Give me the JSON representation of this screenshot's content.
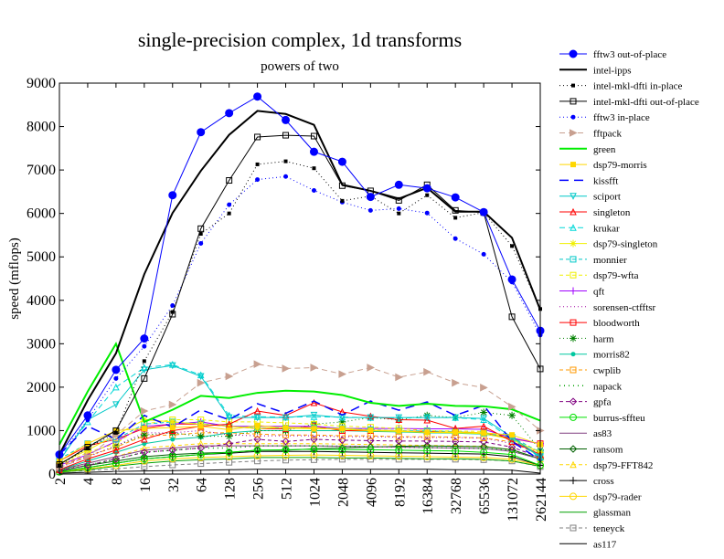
{
  "chart_data": {
    "type": "line",
    "title": "single-precision complex, 1d transforms",
    "subtitle": "powers of two",
    "ylabel": "speed (mflops)",
    "xlabel": "",
    "ylim": [
      0,
      9000
    ],
    "yticks": [
      0,
      1000,
      2000,
      3000,
      4000,
      5000,
      6000,
      7000,
      8000,
      9000
    ],
    "categories": [
      "2",
      "4",
      "8",
      "16",
      "32",
      "64",
      "128",
      "256",
      "512",
      "1024",
      "2048",
      "4096",
      "8192",
      "16384",
      "32768",
      "65536",
      "131072",
      "262144"
    ],
    "legend_position": "right",
    "series": [
      {
        "name": "fftw3 out-of-place",
        "color": "#0000ff",
        "dash": "",
        "width": 1,
        "marker": "dot",
        "msize": 4,
        "values": [
          450,
          1350,
          2400,
          3120,
          6420,
          7870,
          8310,
          8690,
          8150,
          7420,
          7190,
          6380,
          6660,
          6580,
          6370,
          6030,
          4480,
          3300
        ]
      },
      {
        "name": "intel-ipps",
        "color": "#000000",
        "dash": "",
        "width": 2,
        "marker": "none",
        "msize": 0,
        "values": [
          450,
          1700,
          2780,
          4600,
          6010,
          6980,
          7810,
          8360,
          8290,
          8040,
          6660,
          6520,
          6340,
          6590,
          6040,
          6040,
          5440,
          3780
        ]
      },
      {
        "name": "intel-mkl-dfti in-place",
        "color": "#000000",
        "dash": "1,3",
        "width": 1,
        "marker": "square-filled",
        "msize": 2,
        "values": [
          200,
          600,
          950,
          2600,
          3730,
          5530,
          6000,
          7130,
          7200,
          7040,
          6290,
          6400,
          6000,
          6420,
          5900,
          6020,
          5250,
          3800
        ]
      },
      {
        "name": "intel-mkl-dfti out-of-place",
        "color": "#000000",
        "dash": "",
        "width": 1,
        "marker": "square-open",
        "msize": 3,
        "values": [
          220,
          620,
          1000,
          2200,
          3680,
          5650,
          6760,
          7760,
          7800,
          7780,
          6640,
          6520,
          6300,
          6660,
          6070,
          6020,
          3620,
          2420
        ]
      },
      {
        "name": "fftw3 in-place",
        "color": "#0000ff",
        "dash": "1,3",
        "width": 1,
        "marker": "dot",
        "msize": 2,
        "values": [
          400,
          1250,
          2200,
          2940,
          3880,
          5310,
          6200,
          6780,
          6850,
          6530,
          6260,
          6070,
          6110,
          6010,
          5420,
          5060,
          4420,
          3200
        ]
      },
      {
        "name": "fftpack",
        "color": "#c8a090",
        "dash": "6,4",
        "width": 1,
        "marker": "triangle-right",
        "msize": 3.5,
        "values": [
          150,
          400,
          900,
          1450,
          1600,
          2100,
          2250,
          2530,
          2430,
          2450,
          2300,
          2450,
          2230,
          2350,
          2100,
          1990,
          1550,
          1000
        ]
      },
      {
        "name": "green",
        "color": "#00ee00",
        "dash": "",
        "width": 2,
        "marker": "none",
        "msize": 0,
        "values": [
          680,
          1900,
          3000,
          1200,
          1480,
          1800,
          1750,
          1870,
          1920,
          1900,
          1820,
          1640,
          1570,
          1620,
          1570,
          1560,
          1490,
          1230
        ]
      },
      {
        "name": "dsp79-morris",
        "color": "#ffd700",
        "dash": "",
        "width": 1,
        "marker": "square-filled",
        "msize": 3,
        "values": [
          300,
          700,
          1000,
          1050,
          1070,
          1100,
          1020,
          1120,
          1060,
          1040,
          1050,
          1010,
          1000,
          960,
          970,
          950,
          900,
          680
        ]
      },
      {
        "name": "kissfft",
        "color": "#0000ff",
        "dash": "10,6",
        "width": 1.5,
        "marker": "none",
        "msize": 0,
        "values": [
          450,
          1100,
          800,
          1350,
          1080,
          1480,
          1250,
          1620,
          1400,
          1680,
          1360,
          1680,
          1470,
          1660,
          1350,
          1580,
          750,
          320
        ]
      },
      {
        "name": "sciport",
        "color": "#00c8c8",
        "dash": "",
        "width": 1,
        "marker": "triangle-down",
        "msize": 3,
        "values": [
          300,
          1250,
          1600,
          2400,
          2500,
          2250,
          1300,
          1300,
          1300,
          1360,
          1300,
          1300,
          1300,
          1300,
          1300,
          1280,
          850,
          400
        ]
      },
      {
        "name": "singleton",
        "color": "#ff0000",
        "dash": "",
        "width": 1,
        "marker": "triangle-up",
        "msize": 3,
        "values": [
          100,
          350,
          550,
          800,
          1000,
          1100,
          1150,
          1450,
          1350,
          1640,
          1430,
          1330,
          1250,
          1240,
          1050,
          1100,
          750,
          450
        ]
      },
      {
        "name": "krukar",
        "color": "#00d8d8",
        "dash": "6,4",
        "width": 1,
        "marker": "triangle-up",
        "msize": 3,
        "values": [
          350,
          1200,
          2000,
          2450,
          2520,
          2280,
          1350,
          1320,
          1310,
          1320,
          1310,
          1300,
          1290,
          1300,
          1300,
          1250,
          800,
          380
        ]
      },
      {
        "name": "dsp79-singleton",
        "color": "#f0f000",
        "dash": "",
        "width": 1,
        "marker": "star",
        "msize": 4,
        "values": [
          250,
          550,
          900,
          1250,
          1200,
          1150,
          1100,
          1050,
          1080,
          1060,
          1030,
          1000,
          980,
          960,
          950,
          930,
          800,
          500
        ]
      },
      {
        "name": "monnier",
        "color": "#00c8c8",
        "dash": "4,3",
        "width": 1,
        "marker": "square-open",
        "msize": 3,
        "values": [
          350,
          700,
          800,
          1150,
          1200,
          1160,
          1100,
          1060,
          1060,
          1060,
          1050,
          1020,
          1000,
          990,
          980,
          940,
          850,
          500
        ]
      },
      {
        "name": "dsp79-wfta",
        "color": "#f0f000",
        "dash": "4,3",
        "width": 1,
        "marker": "square-open",
        "msize": 3,
        "values": [
          200,
          500,
          700,
          1150,
          1250,
          1250,
          1200,
          1200,
          1180,
          1150,
          1100,
          1080,
          1050,
          1000,
          990,
          980,
          800,
          450
        ]
      },
      {
        "name": "qft",
        "color": "#a000ff",
        "dash": "",
        "width": 1,
        "marker": "plus",
        "msize": 4,
        "values": [
          200,
          450,
          750,
          1100,
          1150,
          1200,
          1100,
          1100,
          1100,
          1100,
          1050,
          1050,
          1050,
          1040,
          1040,
          1030,
          830,
          700
        ]
      },
      {
        "name": "sorensen-ctfftsr",
        "color": "#a000a0",
        "dash": "1,3",
        "width": 1,
        "marker": "none",
        "msize": 0,
        "values": [
          150,
          400,
          650,
          950,
          950,
          1000,
          900,
          880,
          880,
          880,
          860,
          860,
          850,
          840,
          840,
          830,
          700,
          500
        ]
      },
      {
        "name": "bloodworth",
        "color": "#ff0000",
        "dash": "",
        "width": 1,
        "marker": "square-open",
        "msize": 3,
        "values": [
          300,
          650,
          800,
          1050,
          1150,
          1150,
          1100,
          1050,
          1040,
          1100,
          1000,
          1000,
          990,
          980,
          960,
          940,
          820,
          700
        ]
      },
      {
        "name": "harm",
        "color": "#008000",
        "dash": "1,3",
        "width": 1,
        "marker": "star",
        "msize": 4,
        "values": [
          150,
          400,
          650,
          900,
          950,
          870,
          870,
          1000,
          1000,
          1150,
          1200,
          1300,
          1250,
          1350,
          1300,
          1420,
          1350,
          550
        ]
      },
      {
        "name": "morris82",
        "color": "#00c8a0",
        "dash": "",
        "width": 1,
        "marker": "dot",
        "msize": 2,
        "values": [
          100,
          300,
          500,
          700,
          800,
          850,
          950,
          1000,
          1000,
          1000,
          1000,
          980,
          970,
          950,
          940,
          920,
          820,
          400
        ]
      },
      {
        "name": "cwplib",
        "color": "#ff9900",
        "dash": "4,3",
        "width": 1,
        "marker": "square-open",
        "msize": 3,
        "values": [
          180,
          420,
          620,
          880,
          900,
          950,
          950,
          920,
          900,
          900,
          880,
          880,
          860,
          860,
          850,
          830,
          740,
          420
        ]
      },
      {
        "name": "napack",
        "color": "#00a000",
        "dash": "1,4",
        "width": 1.5,
        "marker": "none",
        "msize": 0,
        "values": [
          100,
          200,
          350,
          500,
          550,
          600,
          600,
          650,
          650,
          650,
          640,
          630,
          620,
          610,
          600,
          590,
          540,
          350
        ]
      },
      {
        "name": "gpfa",
        "color": "#800080",
        "dash": "4,3",
        "width": 1,
        "marker": "diamond",
        "msize": 3.5,
        "values": [
          80,
          200,
          350,
          500,
          550,
          600,
          700,
          800,
          750,
          800,
          780,
          770,
          760,
          760,
          750,
          740,
          620,
          380
        ]
      },
      {
        "name": "burrus-sffteu",
        "color": "#00e000",
        "dash": "",
        "width": 1,
        "marker": "circle-open",
        "msize": 3.5,
        "values": [
          50,
          150,
          250,
          350,
          400,
          450,
          500,
          550,
          560,
          570,
          560,
          560,
          550,
          540,
          530,
          500,
          450,
          200
        ]
      },
      {
        "name": "as83",
        "color": "#804080",
        "dash": "",
        "width": 1,
        "marker": "none",
        "msize": 0,
        "values": [
          100,
          250,
          400,
          550,
          600,
          650,
          650,
          650,
          650,
          650,
          640,
          630,
          620,
          610,
          600,
          590,
          520,
          350
        ]
      },
      {
        "name": "ransom",
        "color": "#006000",
        "dash": "",
        "width": 1,
        "marker": "diamond",
        "msize": 3.5,
        "values": [
          80,
          200,
          300,
          400,
          450,
          480,
          500,
          550,
          550,
          580,
          600,
          620,
          640,
          650,
          640,
          630,
          560,
          350
        ]
      },
      {
        "name": "dsp79-FFT842",
        "color": "#ffd700",
        "dash": "4,3",
        "width": 1,
        "marker": "triangle-up",
        "msize": 3,
        "values": [
          100,
          250,
          400,
          600,
          650,
          700,
          700,
          700,
          700,
          700,
          690,
          680,
          670,
          660,
          650,
          640,
          560,
          350
        ]
      },
      {
        "name": "cross",
        "color": "#000000",
        "dash": "",
        "width": 1,
        "marker": "plus",
        "msize": 4,
        "values": [
          60,
          150,
          250,
          350,
          400,
          450,
          480,
          520,
          520,
          520,
          510,
          500,
          490,
          480,
          470,
          460,
          400,
          200
        ]
      },
      {
        "name": "dsp79-rader",
        "color": "#ffd700",
        "dash": "",
        "width": 1,
        "marker": "circle-open",
        "msize": 3.5,
        "values": [
          50,
          120,
          200,
          300,
          350,
          380,
          400,
          420,
          430,
          440,
          430,
          420,
          410,
          400,
          390,
          380,
          340,
          200
        ]
      },
      {
        "name": "glassman",
        "color": "#00a000",
        "dash": "",
        "width": 1,
        "marker": "none",
        "msize": 0,
        "values": [
          40,
          100,
          180,
          250,
          300,
          330,
          350,
          380,
          380,
          380,
          370,
          370,
          360,
          350,
          350,
          340,
          300,
          180
        ]
      },
      {
        "name": "teneyck",
        "color": "#808080",
        "dash": "4,3",
        "width": 1,
        "marker": "square-open",
        "msize": 3,
        "values": [
          50,
          80,
          120,
          170,
          210,
          240,
          270,
          300,
          320,
          330,
          340,
          340,
          340,
          340,
          340,
          330,
          300,
          170
        ]
      },
      {
        "name": "as117",
        "color": "#000000",
        "dash": "",
        "width": 1,
        "marker": "none",
        "msize": 0,
        "values": [
          20,
          40,
          60,
          70,
          80,
          90,
          100,
          110,
          110,
          110,
          110,
          110,
          110,
          110,
          100,
          100,
          90,
          20
        ]
      }
    ]
  }
}
